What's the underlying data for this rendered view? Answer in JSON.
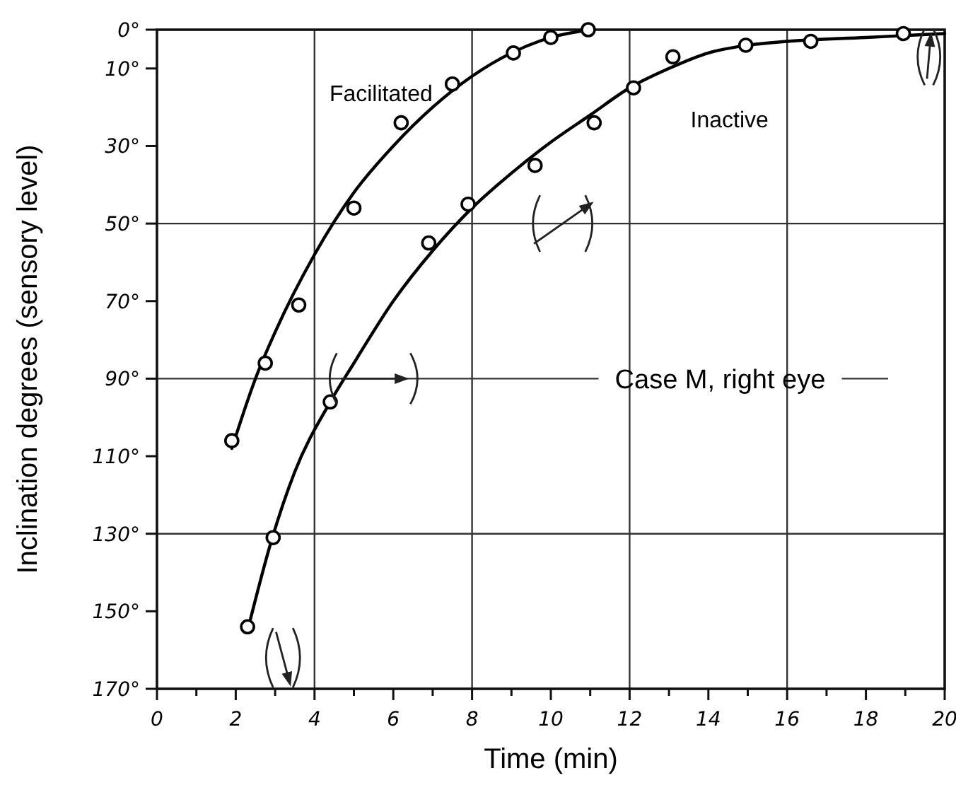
{
  "chart_data": {
    "type": "scatter",
    "xlabel": "Time (min)",
    "ylabel": "Inclination degrees (sensory level)",
    "xlim": [
      0,
      20
    ],
    "ylim": [
      170,
      0
    ],
    "xticks": [
      0,
      {
        "value": 1,
        "label": null
      },
      2,
      {
        "value": 3,
        "label": null
      },
      4,
      {
        "value": 5,
        "label": null
      },
      6,
      {
        "value": 7,
        "label": null
      },
      8,
      {
        "value": 9,
        "label": null
      },
      10,
      {
        "value": 11,
        "label": null
      },
      12,
      {
        "value": 13,
        "label": null
      },
      14,
      {
        "value": 15,
        "label": null
      },
      16,
      {
        "value": 17,
        "label": null
      },
      18,
      {
        "value": 19,
        "label": null
      },
      20
    ],
    "yticks": [
      {
        "value": 0,
        "label": "0°"
      },
      {
        "value": 10,
        "label": "10°"
      },
      {
        "value": 30,
        "label": "30°"
      },
      {
        "value": 50,
        "label": "50°"
      },
      {
        "value": 70,
        "label": "70°"
      },
      {
        "value": 90,
        "label": "90°"
      },
      {
        "value": 110,
        "label": "110°"
      },
      {
        "value": 130,
        "label": "130°"
      },
      {
        "value": 150,
        "label": "150°"
      },
      {
        "value": 170,
        "label": "170°"
      }
    ],
    "marker": "circle",
    "legend": false,
    "series": [
      {
        "name": "Facilitated",
        "color": "#000000",
        "x": [
          1.9,
          2.75,
          3.6,
          5.0,
          6.2,
          7.5,
          9.05,
          10.0,
          10.95
        ],
        "values": [
          106,
          86,
          71,
          46,
          24,
          14,
          6,
          2,
          0
        ]
      },
      {
        "name": "Inactive",
        "color": "#000000",
        "x": [
          2.3,
          2.95,
          4.4,
          6.9,
          7.9,
          9.6,
          11.1,
          12.1,
          13.1,
          14.95,
          16.6,
          18.95
        ],
        "values": [
          154,
          131,
          96,
          55,
          45,
          35,
          24,
          15,
          7,
          4,
          3,
          1
        ]
      },
      {
        "type": "line",
        "marker": "none",
        "color": "#000000",
        "x": [
          1.9,
          2.5,
          3,
          4,
          5,
          6,
          7,
          8,
          9,
          10,
          11
        ],
        "values": [
          108,
          90,
          78,
          58,
          42,
          30,
          20,
          12,
          6,
          2,
          0
        ]
      },
      {
        "type": "line",
        "marker": "none",
        "color": "#000000",
        "x": [
          2.3,
          2.9,
          3.5,
          4.4,
          5,
          6,
          7,
          8,
          9,
          10,
          11,
          12,
          13,
          14,
          15,
          16,
          18,
          19,
          20
        ],
        "values": [
          155,
          132,
          114,
          96,
          86,
          70,
          57,
          46,
          37,
          29,
          22,
          15,
          10,
          6,
          4,
          3,
          2,
          1.5,
          1
        ]
      }
    ],
    "ref_lines": [
      {
        "axis": "x",
        "value": 4
      },
      {
        "axis": "x",
        "value": 8
      },
      {
        "axis": "x",
        "value": 12
      },
      {
        "axis": "x",
        "value": 16
      },
      {
        "axis": "y",
        "value": 50
      },
      {
        "axis": "y",
        "value": 90,
        "label": "Case M, right eye"
      },
      {
        "axis": "y",
        "value": 130
      }
    ]
  }
}
